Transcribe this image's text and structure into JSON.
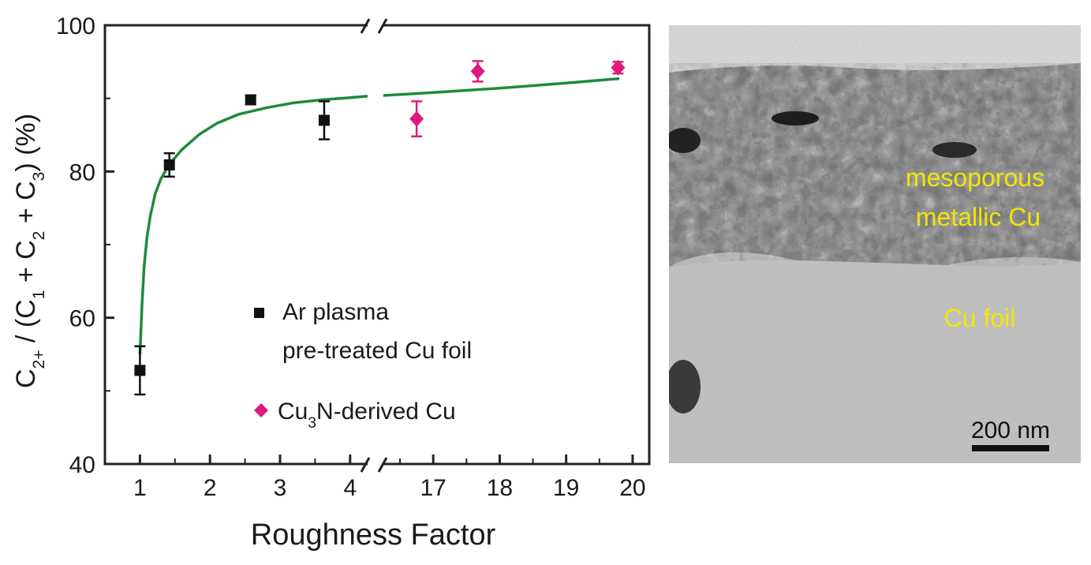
{
  "chart_data": {
    "type": "scatter",
    "xlabel": "Roughness Factor",
    "ylabel": {
      "parts": [
        {
          "t": "C",
          "sub": false
        },
        {
          "t": "2+",
          "sub": true
        },
        {
          "t": " / (C",
          "sub": false
        },
        {
          "t": "1",
          "sub": true
        },
        {
          "t": " + C",
          "sub": false
        },
        {
          "t": "2",
          "sub": true
        },
        {
          "t": " + C",
          "sub": false
        },
        {
          "t": "3",
          "sub": true
        },
        {
          "t": ")  (%)",
          "sub": false
        }
      ]
    },
    "x_break": {
      "left": [
        0.5,
        4.25
      ],
      "right": [
        16.25,
        20.25
      ]
    },
    "x_ticks_left": [
      "1",
      "2",
      "3",
      "4"
    ],
    "x_ticks_right": [
      "17",
      "18",
      "19",
      "20"
    ],
    "y_ticks": [
      "40",
      "60",
      "80",
      "100"
    ],
    "ylim": [
      40,
      100
    ],
    "grid": false,
    "legend_placement": "center",
    "series": [
      {
        "name": "Ar plasma pre-treated Cu foil",
        "legend_lines": [
          "Ar plasma",
          "pre-treated Cu foil"
        ],
        "marker": "square",
        "color": "#111111",
        "points": [
          {
            "x": 1.0,
            "y": 52.8,
            "err": 3.3
          },
          {
            "x": 1.42,
            "y": 80.9,
            "err": 1.6
          },
          {
            "x": 2.58,
            "y": 89.8,
            "err": 0.6
          },
          {
            "x": 3.63,
            "y": 87.0,
            "err": 2.6
          }
        ]
      },
      {
        "name": "Cu3N-derived Cu",
        "legend_parts": [
          {
            "t": "Cu",
            "sub": false
          },
          {
            "t": "3",
            "sub": true
          },
          {
            "t": "N-derived Cu",
            "sub": false
          }
        ],
        "marker": "diamond",
        "color": "#e0197d",
        "points": [
          {
            "x": 16.75,
            "y": 87.2,
            "err": 2.4
          },
          {
            "x": 17.67,
            "y": 93.7,
            "err": 1.4
          },
          {
            "x": 19.78,
            "y": 94.2,
            "err": 0.8
          }
        ]
      }
    ],
    "fit_curve": {
      "color": "#1f8a3c",
      "left": [
        [
          1.0,
          55
        ],
        [
          1.03,
          62
        ],
        [
          1.06,
          67
        ],
        [
          1.1,
          71
        ],
        [
          1.15,
          74
        ],
        [
          1.22,
          77
        ],
        [
          1.3,
          79
        ],
        [
          1.42,
          81
        ],
        [
          1.6,
          83
        ],
        [
          1.85,
          85.1
        ],
        [
          2.1,
          86.6
        ],
        [
          2.4,
          87.8
        ],
        [
          2.8,
          88.7
        ],
        [
          3.2,
          89.4
        ],
        [
          3.6,
          89.8
        ],
        [
          4.0,
          90.1
        ],
        [
          4.25,
          90.3
        ]
      ],
      "right": [
        [
          16.25,
          90.4
        ],
        [
          17.0,
          90.8
        ],
        [
          18.0,
          91.4
        ],
        [
          19.0,
          92.1
        ],
        [
          19.8,
          92.7
        ]
      ]
    }
  },
  "micrograph": {
    "label_layer_lines": [
      "mesoporous",
      "metallic Cu"
    ],
    "label_substrate": "Cu foil",
    "scale_bar_label": "200 nm",
    "label_color": "#f2e600"
  }
}
